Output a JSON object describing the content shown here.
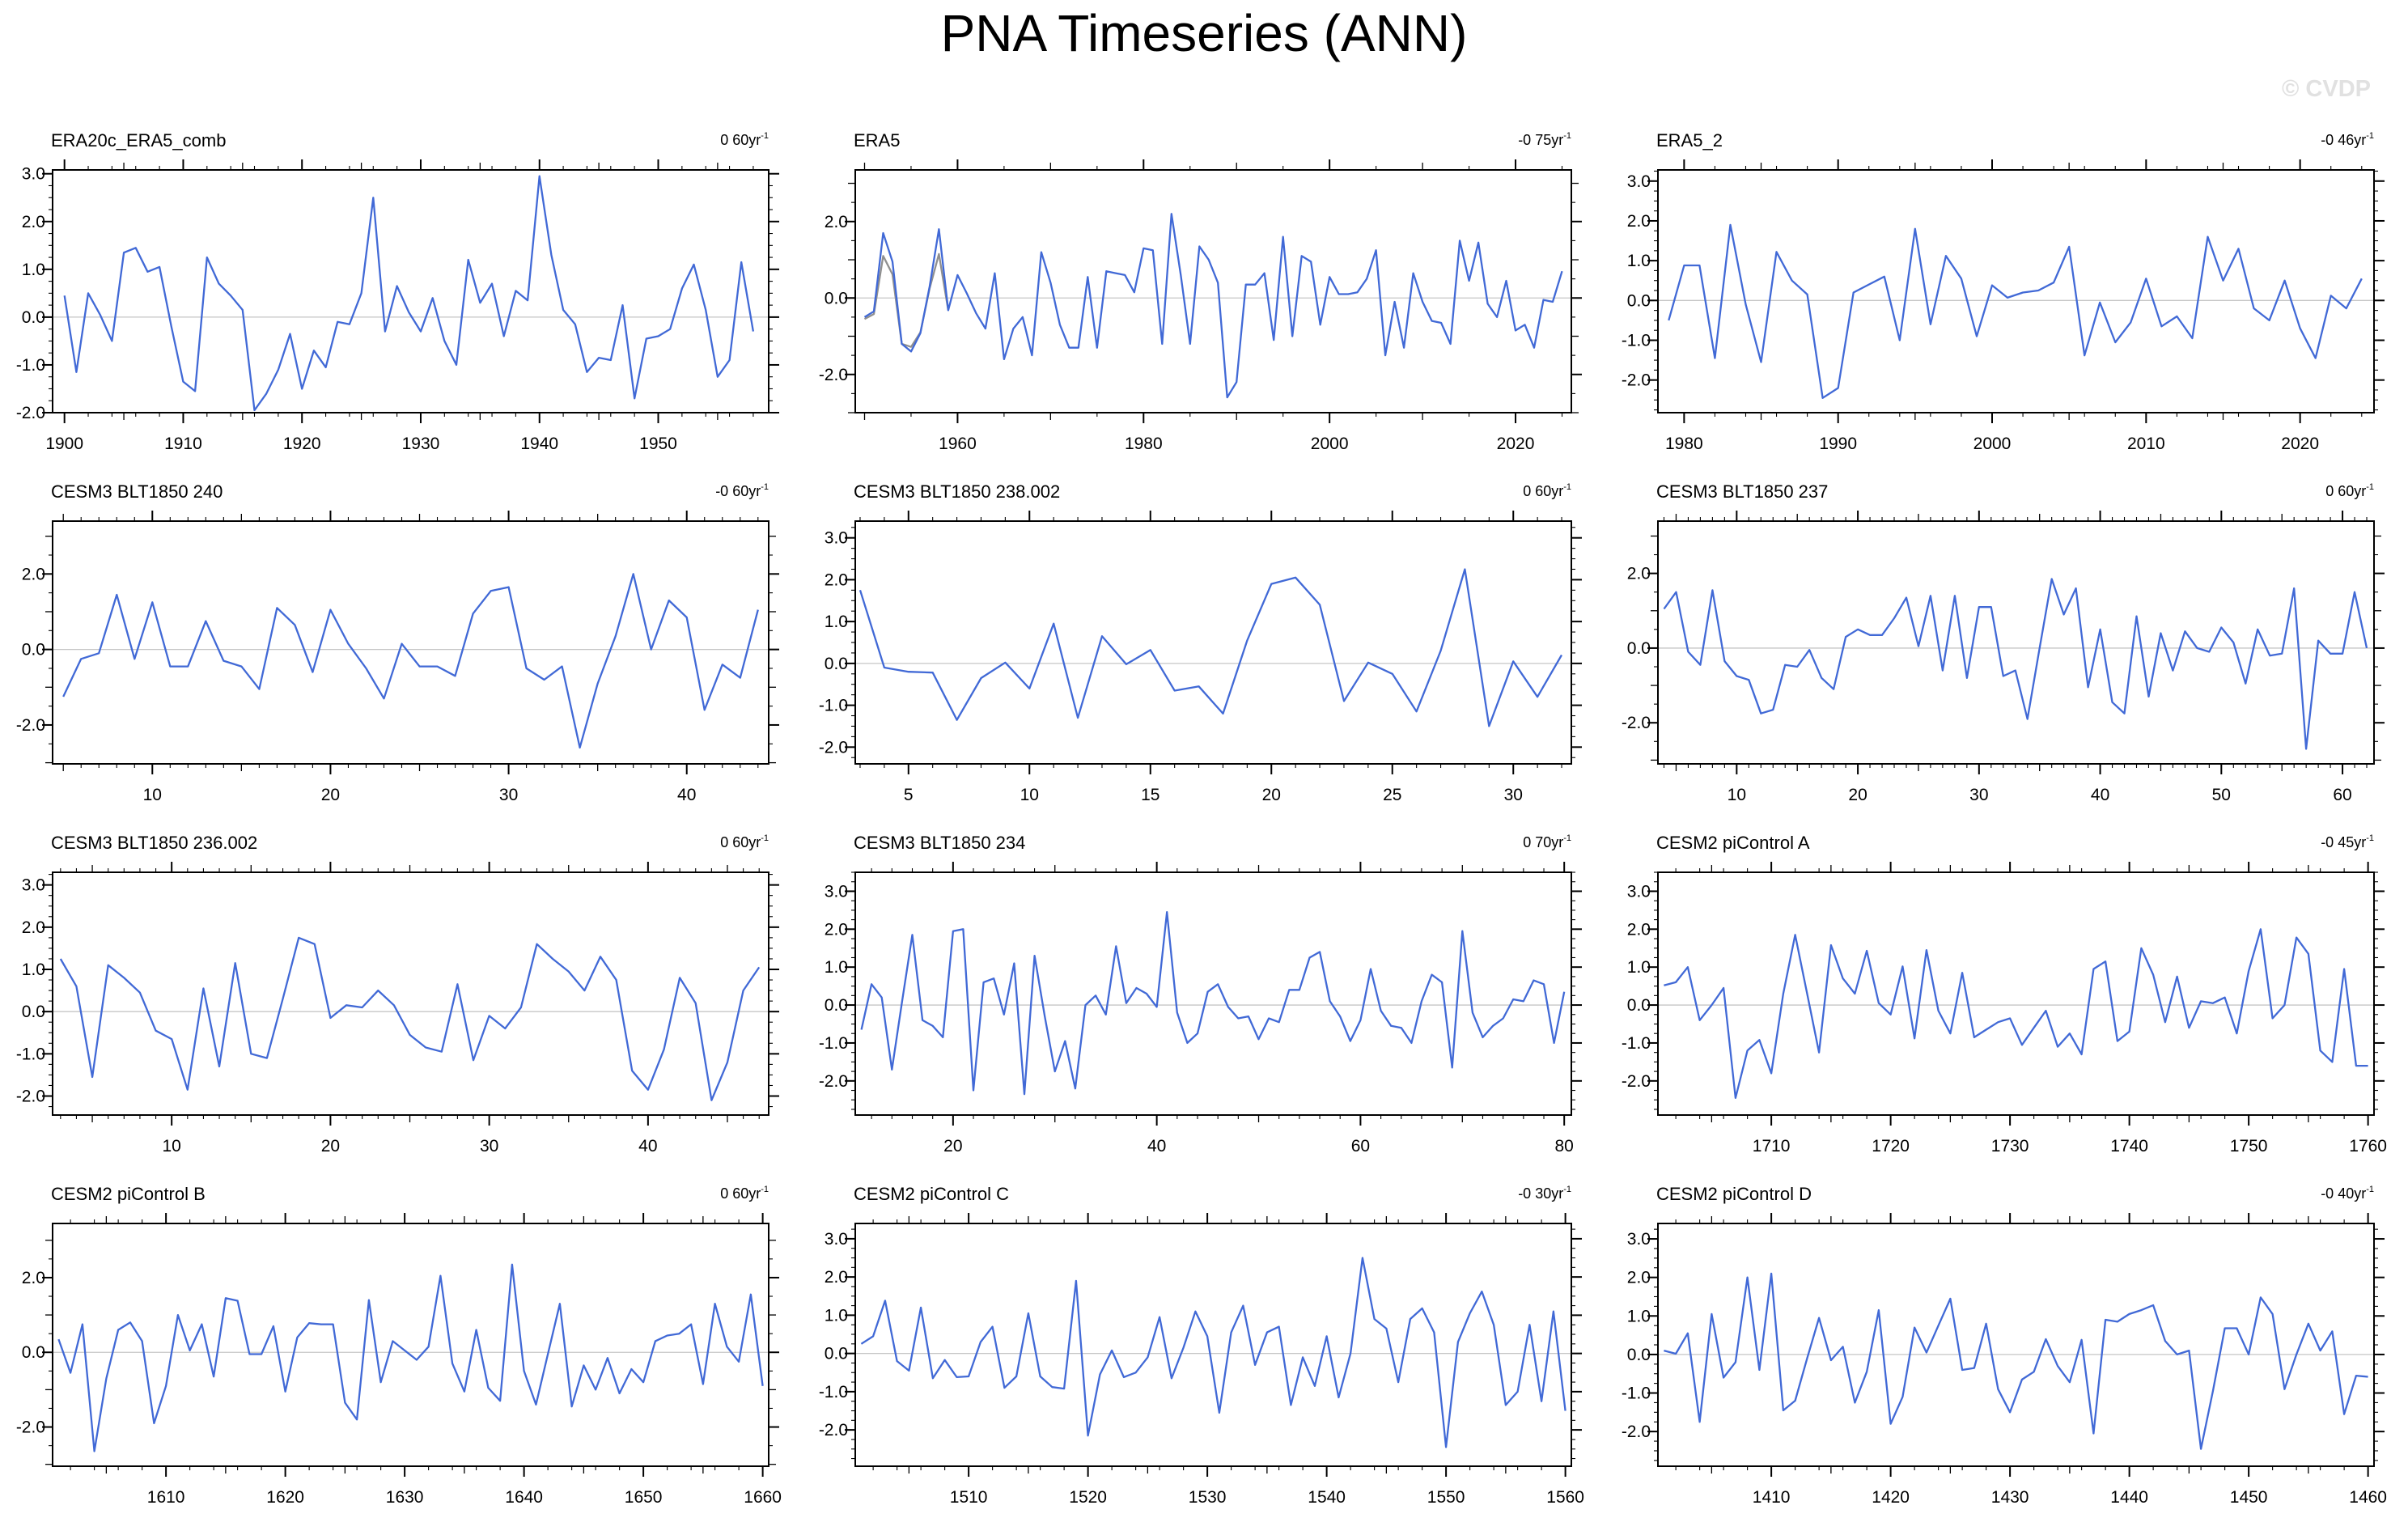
{
  "header": {
    "title": "PNA Timeseries (ANN)",
    "watermark": "© CVDP"
  },
  "colors": {
    "line": "#4169d6",
    "overlap_line": "#8f8f8f",
    "zero_line": "#c6c6c6",
    "frame": "#000000",
    "watermark": "#e1e1e1",
    "background": "#ffffff"
  },
  "chart_data": [
    {
      "type": "line",
      "title": "ERA20c_ERA5_comb",
      "trend": "0 60yr",
      "trend_sup": "-1",
      "x_start": 1900,
      "x_step": 1,
      "values": [
        0.45,
        -1.15,
        0.5,
        0.05,
        -0.5,
        1.35,
        1.45,
        0.95,
        1.05,
        -0.2,
        -1.35,
        -1.55,
        1.25,
        0.7,
        0.45,
        0.15,
        -1.95,
        -1.6,
        -1.1,
        -0.35,
        -1.5,
        -0.7,
        -1.05,
        -0.1,
        -0.15,
        0.5,
        2.5,
        -0.3,
        0.65,
        0.1,
        -0.3,
        0.4,
        -0.5,
        -1.0,
        1.2,
        0.3,
        0.7,
        -0.4,
        0.55,
        0.35,
        2.95,
        1.3,
        0.15,
        -0.15,
        -1.15,
        -0.85,
        -0.9,
        0.25,
        -1.7,
        -0.45,
        -0.4,
        -0.25,
        0.6,
        1.1,
        0.15,
        -1.25,
        -0.9,
        1.15,
        -0.3
      ],
      "xlim": [
        1899,
        1959.3
      ],
      "ylim": [
        -2.0,
        3.08
      ],
      "xticks": [
        1900,
        1910,
        1920,
        1930,
        1940,
        1950
      ],
      "x_mid_step": 5,
      "x_minor_step": 2,
      "yticks": [
        -2,
        -1,
        0,
        1,
        2,
        3
      ],
      "y_mid_step": null,
      "y_minor_step": 0.25,
      "grid": "zero-line-only",
      "legend": "none"
    },
    {
      "type": "line",
      "title": "ERA5",
      "trend": "-0 75yr",
      "trend_sup": "-1",
      "x_start": 1950,
      "x_step": 1,
      "values": [
        -0.5,
        -0.35,
        1.7,
        0.95,
        -1.2,
        -1.4,
        -0.92,
        0.3,
        1.8,
        -0.32,
        0.6,
        0.12,
        -0.4,
        -0.8,
        0.65,
        -1.6,
        -0.8,
        -0.5,
        -1.5,
        1.2,
        0.4,
        -0.7,
        -1.3,
        -1.3,
        0.55,
        -1.3,
        0.7,
        0.65,
        0.6,
        0.15,
        1.3,
        1.25,
        -1.2,
        2.2,
        0.6,
        -1.2,
        1.35,
        1.0,
        0.4,
        -2.6,
        -2.2,
        0.35,
        0.35,
        0.65,
        -1.1,
        1.6,
        -1.0,
        1.1,
        0.95,
        -0.7,
        0.55,
        0.1,
        0.1,
        0.15,
        0.5,
        1.25,
        -1.5,
        -0.1,
        -1.3,
        0.65,
        -0.1,
        -0.6,
        -0.65,
        -1.2,
        1.5,
        0.45,
        1.45,
        -0.15,
        -0.5,
        0.45,
        -0.85,
        -0.7,
        -1.3,
        -0.05,
        -0.1,
        0.7
      ],
      "overlap_series": {
        "x_start": 1950,
        "values": [
          -0.55,
          -0.42,
          1.1,
          0.62,
          -1.2,
          -1.28,
          -0.9,
          0.25,
          1.15,
          -0.32
        ]
      },
      "xlim": [
        1949,
        2026
      ],
      "ylim": [
        -3.0,
        3.35
      ],
      "xticks": [
        1960,
        1980,
        2000,
        2020
      ],
      "x_mid_step": 10,
      "x_minor_step": 5,
      "yticks": [
        -2,
        0,
        2
      ],
      "y_mid_step": 1,
      "y_minor_step": 0.5,
      "grid": "zero-line-only",
      "legend": "none"
    },
    {
      "type": "line",
      "title": "ERA5_2",
      "trend": "-0 46yr",
      "trend_sup": "-1",
      "x_start": 1979,
      "x_step": 1,
      "values": [
        -0.5,
        0.88,
        0.88,
        -1.45,
        1.9,
        -0.1,
        -1.55,
        1.22,
        0.5,
        0.15,
        -2.45,
        -2.2,
        0.2,
        0.4,
        0.6,
        -1.0,
        1.8,
        -0.6,
        1.12,
        0.55,
        -0.9,
        0.38,
        0.07,
        0.2,
        0.25,
        0.45,
        1.35,
        -1.38,
        -0.05,
        -1.05,
        -0.55,
        0.55,
        -0.65,
        -0.4,
        -0.95,
        1.6,
        0.5,
        1.3,
        -0.2,
        -0.5,
        0.5,
        -0.7,
        -1.45,
        0.12,
        -0.2,
        0.55
      ],
      "xlim": [
        1978.3,
        2024.8
      ],
      "ylim": [
        -2.82,
        3.28
      ],
      "xticks": [
        1980,
        1990,
        2000,
        2010,
        2020
      ],
      "x_mid_step": 5,
      "x_minor_step": 2,
      "yticks": [
        -2,
        -1,
        0,
        1,
        2,
        3
      ],
      "y_mid_step": null,
      "y_minor_step": 0.25,
      "grid": "zero-line-only",
      "legend": "none"
    },
    {
      "type": "line",
      "title": "CESM3 BLT1850 240",
      "trend": "-0 60yr",
      "trend_sup": "-1",
      "x_start": 5,
      "x_step": 1,
      "values": [
        -1.25,
        -0.25,
        -0.1,
        1.45,
        -0.25,
        1.25,
        -0.45,
        -0.45,
        0.75,
        -0.3,
        -0.45,
        -1.05,
        1.1,
        0.65,
        -0.6,
        1.05,
        0.15,
        -0.5,
        -1.3,
        0.15,
        -0.45,
        -0.45,
        -0.7,
        0.95,
        1.55,
        1.65,
        -0.5,
        -0.8,
        -0.45,
        -2.6,
        -0.9,
        0.35,
        2.0,
        0.0,
        1.3,
        0.85,
        -1.6,
        -0.4,
        -0.75,
        1.05
      ],
      "xlim": [
        4.4,
        44.6
      ],
      "ylim": [
        -3.03,
        3.4
      ],
      "xticks": [
        10,
        20,
        30,
        40
      ],
      "x_mid_step": 5,
      "x_minor_step": 1,
      "yticks": [
        -2,
        0,
        2
      ],
      "y_mid_step": 1,
      "y_minor_step": 0.5,
      "grid": "zero-line-only",
      "legend": "none"
    },
    {
      "type": "line",
      "title": "CESM3 BLT1850 238.002",
      "trend": "0 60yr",
      "trend_sup": "-1",
      "x_start": 3,
      "x_step": 1,
      "values": [
        1.75,
        -0.1,
        -0.2,
        -0.22,
        -1.35,
        -0.35,
        0.02,
        -0.6,
        0.95,
        -1.3,
        0.65,
        -0.02,
        0.32,
        -0.65,
        -0.55,
        -1.2,
        0.55,
        1.9,
        2.05,
        1.4,
        -0.9,
        0.02,
        -0.25,
        -1.15,
        0.3,
        2.25,
        -1.5,
        0.05,
        -0.8,
        0.2
      ],
      "xlim": [
        2.8,
        32.4
      ],
      "ylim": [
        -2.4,
        3.4
      ],
      "xticks": [
        5,
        10,
        15,
        20,
        25,
        30
      ],
      "x_mid_step": null,
      "x_minor_step": 1,
      "yticks": [
        -2,
        -1,
        0,
        1,
        2,
        3
      ],
      "y_mid_step": null,
      "y_minor_step": 0.25,
      "grid": "zero-line-only",
      "legend": "none"
    },
    {
      "type": "line",
      "title": "CESM3 BLT1850 237",
      "trend": "0 60yr",
      "trend_sup": "-1",
      "x_start": 4,
      "x_step": 1,
      "values": [
        1.05,
        1.5,
        -0.1,
        -0.45,
        1.55,
        -0.35,
        -0.75,
        -0.85,
        -1.75,
        -1.65,
        -0.45,
        -0.5,
        -0.05,
        -0.8,
        -1.1,
        0.3,
        0.5,
        0.35,
        0.35,
        0.8,
        1.35,
        0.05,
        1.4,
        -0.6,
        1.4,
        -0.8,
        1.1,
        1.1,
        -0.75,
        -0.6,
        -1.9,
        0.0,
        1.85,
        0.9,
        1.6,
        -1.05,
        0.5,
        -1.45,
        -1.75,
        0.85,
        -1.3,
        0.4,
        -0.6,
        0.45,
        0.0,
        -0.1,
        0.55,
        0.15,
        -0.95,
        0.5,
        -0.2,
        -0.15,
        1.6,
        -2.7,
        0.2,
        -0.15,
        -0.15,
        1.5,
        0.0
      ],
      "xlim": [
        3.5,
        62.6
      ],
      "ylim": [
        -3.1,
        3.4
      ],
      "xticks": [
        10,
        20,
        30,
        40,
        50,
        60
      ],
      "x_mid_step": 5,
      "x_minor_step": 1,
      "yticks": [
        -2,
        0,
        2
      ],
      "y_mid_step": 1,
      "y_minor_step": 0.5,
      "grid": "zero-line-only",
      "legend": "none"
    },
    {
      "type": "line",
      "title": "CESM3 BLT1850 236.002",
      "trend": "0 60yr",
      "trend_sup": "-1",
      "x_start": 3,
      "x_step": 1,
      "values": [
        1.25,
        0.6,
        -1.55,
        1.1,
        0.8,
        0.45,
        -0.45,
        -0.65,
        -1.85,
        0.55,
        -1.3,
        1.15,
        -1.0,
        -1.1,
        0.3,
        1.75,
        1.6,
        -0.15,
        0.15,
        0.1,
        0.5,
        0.15,
        -0.55,
        -0.85,
        -0.95,
        0.65,
        -1.15,
        -0.1,
        -0.4,
        0.1,
        1.6,
        1.25,
        0.95,
        0.5,
        1.3,
        0.75,
        -1.4,
        -1.85,
        -0.9,
        0.8,
        0.2,
        -2.1,
        -1.2,
        0.5,
        1.05
      ],
      "xlim": [
        2.5,
        47.6
      ],
      "ylim": [
        -2.45,
        3.3
      ],
      "xticks": [
        10,
        20,
        30,
        40
      ],
      "x_mid_step": 5,
      "x_minor_step": 1,
      "yticks": [
        -2,
        -1,
        0,
        1,
        2,
        3
      ],
      "y_mid_step": null,
      "y_minor_step": 0.25,
      "grid": "zero-line-only",
      "legend": "none"
    },
    {
      "type": "line",
      "title": "CESM3 BLT1850 234",
      "trend": "0 70yr",
      "trend_sup": "-1",
      "x_start": 11,
      "x_step": 1,
      "values": [
        -0.65,
        0.55,
        0.2,
        -1.7,
        0.1,
        1.85,
        -0.4,
        -0.55,
        -0.85,
        1.95,
        2.0,
        -2.25,
        0.6,
        0.7,
        -0.25,
        1.1,
        -2.35,
        1.3,
        -0.3,
        -1.75,
        -0.95,
        -2.2,
        0.0,
        0.25,
        -0.25,
        1.55,
        0.05,
        0.45,
        0.3,
        -0.05,
        2.45,
        -0.2,
        -1.0,
        -0.75,
        0.35,
        0.55,
        -0.05,
        -0.35,
        -0.3,
        -0.9,
        -0.35,
        -0.45,
        0.4,
        0.4,
        1.25,
        1.4,
        0.1,
        -0.3,
        -0.95,
        -0.4,
        0.95,
        -0.15,
        -0.55,
        -0.6,
        -1.0,
        0.1,
        0.8,
        0.6,
        -1.65,
        1.95,
        -0.2,
        -0.85,
        -0.55,
        -0.35,
        0.15,
        0.1,
        0.65,
        0.55,
        -1.0,
        0.35
      ],
      "xlim": [
        10.4,
        80.7
      ],
      "ylim": [
        -2.9,
        3.5
      ],
      "xticks": [
        20,
        40,
        60,
        80
      ],
      "x_mid_step": 10,
      "x_minor_step": 2,
      "yticks": [
        -2,
        -1,
        0,
        1,
        2,
        3
      ],
      "y_mid_step": null,
      "y_minor_step": 0.25,
      "grid": "zero-line-only",
      "legend": "none"
    },
    {
      "type": "line",
      "title": "CESM2 piControl A",
      "trend": "-0 45yr",
      "trend_sup": "-1",
      "x_start": 1701,
      "x_step": 1,
      "values": [
        0.52,
        0.6,
        1.0,
        -0.4,
        0.0,
        0.45,
        -2.45,
        -1.2,
        -0.92,
        -1.8,
        0.3,
        1.85,
        0.3,
        -1.25,
        1.58,
        0.7,
        0.3,
        1.43,
        0.05,
        -0.25,
        1.02,
        -0.88,
        1.45,
        -0.15,
        -0.75,
        0.85,
        -0.85,
        -0.65,
        -0.45,
        -0.35,
        -1.05,
        -0.6,
        -0.15,
        -1.1,
        -0.75,
        -1.3,
        0.95,
        1.15,
        -0.95,
        -0.7,
        1.5,
        0.8,
        -0.45,
        0.75,
        -0.6,
        0.1,
        0.05,
        0.2,
        -0.75,
        0.9,
        2.0,
        -0.35,
        0.0,
        1.78,
        1.35,
        -1.2,
        -1.5,
        0.95,
        -1.6,
        -1.6
      ],
      "xlim": [
        1700.5,
        1760.5
      ],
      "ylim": [
        -2.9,
        3.5
      ],
      "xticks": [
        1710,
        1720,
        1730,
        1740,
        1750,
        1760
      ],
      "x_mid_step": 5,
      "x_minor_step": 2,
      "yticks": [
        -2,
        -1,
        0,
        1,
        2,
        3
      ],
      "y_mid_step": null,
      "y_minor_step": 0.25,
      "grid": "zero-line-only",
      "legend": "none"
    },
    {
      "type": "line",
      "title": "CESM2 piControl B",
      "trend": "0 60yr",
      "trend_sup": "-1",
      "x_start": 1601,
      "x_step": 1,
      "values": [
        0.35,
        -0.55,
        0.75,
        -2.65,
        -0.7,
        0.6,
        0.8,
        0.3,
        -1.9,
        -0.9,
        1.0,
        0.05,
        0.75,
        -0.65,
        1.45,
        1.38,
        -0.05,
        -0.05,
        0.7,
        -1.05,
        0.4,
        0.78,
        0.75,
        0.75,
        -1.35,
        -1.8,
        1.4,
        -0.8,
        0.3,
        0.05,
        -0.2,
        0.15,
        2.05,
        -0.3,
        -1.05,
        0.6,
        -0.95,
        -1.3,
        2.35,
        -0.5,
        -1.4,
        -0.05,
        1.3,
        -1.45,
        -0.35,
        -1.0,
        -0.15,
        -1.1,
        -0.45,
        -0.8,
        0.3,
        0.45,
        0.5,
        0.75,
        -0.85,
        1.3,
        0.15,
        -0.25,
        1.55,
        -0.9
      ],
      "xlim": [
        1600.5,
        1660.5
      ],
      "ylim": [
        -3.05,
        3.45
      ],
      "xticks": [
        1610,
        1620,
        1630,
        1640,
        1650,
        1660
      ],
      "x_mid_step": 5,
      "x_minor_step": 2,
      "yticks": [
        -2,
        0,
        2
      ],
      "y_mid_step": 1,
      "y_minor_step": 0.5,
      "grid": "zero-line-only",
      "legend": "none"
    },
    {
      "type": "line",
      "title": "CESM2 piControl C",
      "trend": "-0 30yr",
      "trend_sup": "-1",
      "x_start": 1501,
      "x_step": 1,
      "values": [
        0.25,
        0.45,
        1.38,
        -0.2,
        -0.45,
        1.2,
        -0.65,
        -0.17,
        -0.62,
        -0.6,
        0.3,
        0.7,
        -0.9,
        -0.6,
        1.05,
        -0.6,
        -0.88,
        -0.92,
        1.9,
        -2.15,
        -0.55,
        0.08,
        -0.62,
        -0.5,
        -0.1,
        0.95,
        -0.65,
        0.15,
        1.1,
        0.45,
        -1.55,
        0.55,
        1.25,
        -0.3,
        0.55,
        0.7,
        -1.35,
        -0.1,
        -0.85,
        0.45,
        -1.15,
        0.0,
        2.5,
        0.9,
        0.65,
        -0.75,
        0.9,
        1.18,
        0.55,
        -2.45,
        0.3,
        1.05,
        1.62,
        0.75,
        -1.35,
        -1.0,
        0.75,
        -1.25,
        1.1,
        -1.5
      ],
      "xlim": [
        1500.5,
        1560.5
      ],
      "ylim": [
        -2.95,
        3.4
      ],
      "xticks": [
        1510,
        1520,
        1530,
        1540,
        1550,
        1560
      ],
      "x_mid_step": 5,
      "x_minor_step": 2,
      "yticks": [
        -2,
        -1,
        0,
        1,
        2,
        3
      ],
      "y_mid_step": null,
      "y_minor_step": 0.25,
      "grid": "zero-line-only",
      "legend": "none"
    },
    {
      "type": "line",
      "title": "CESM2 piControl D",
      "trend": "-0 40yr",
      "trend_sup": "-1",
      "x_start": 1401,
      "x_step": 1,
      "values": [
        0.1,
        0.02,
        0.55,
        -1.75,
        1.05,
        -0.6,
        -0.2,
        2.0,
        -0.4,
        2.1,
        -1.45,
        -1.2,
        -0.1,
        0.95,
        -0.15,
        0.2,
        -1.25,
        -0.45,
        1.15,
        -1.8,
        -1.1,
        0.7,
        0.05,
        0.75,
        1.45,
        -0.4,
        -0.35,
        0.8,
        -0.9,
        -1.5,
        -0.65,
        -0.45,
        0.4,
        -0.3,
        -0.72,
        0.38,
        -2.05,
        0.9,
        0.85,
        1.05,
        1.15,
        1.28,
        0.35,
        0.0,
        0.1,
        -2.45,
        -0.95,
        0.68,
        0.68,
        0.0,
        1.48,
        1.05,
        -0.9,
        0.0,
        0.8,
        0.1,
        0.6,
        -1.55,
        -0.55,
        -0.58
      ],
      "xlim": [
        1400.5,
        1460.5
      ],
      "ylim": [
        -2.9,
        3.4
      ],
      "xticks": [
        1410,
        1420,
        1430,
        1440,
        1450,
        1460
      ],
      "x_mid_step": 5,
      "x_minor_step": 2,
      "yticks": [
        -2,
        -1,
        0,
        1,
        2,
        3
      ],
      "y_mid_step": null,
      "y_minor_step": 0.25,
      "grid": "zero-line-only",
      "legend": "none"
    }
  ]
}
